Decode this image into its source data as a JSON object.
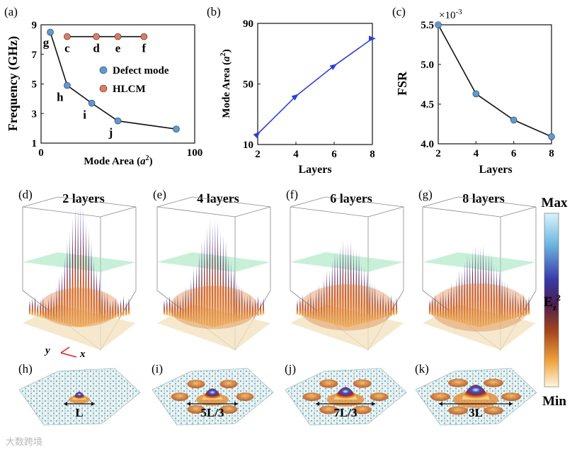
{
  "chart_data": [
    {
      "panel": "(a)",
      "type": "scatter",
      "xlabel_prefix": "Mode Area (",
      "xlabel_var": "a",
      "xlabel_exp": "2",
      "xlabel_suffix": ")",
      "ylabel": "Frequency (GHz)",
      "xlim": [
        0,
        100
      ],
      "ylim": [
        1,
        9
      ],
      "xticks": [
        "0",
        "100"
      ],
      "yticks": [
        "1",
        "3",
        "5",
        "7",
        "9"
      ],
      "series": [
        {
          "name": "Defect mode",
          "color": "#5b9bd5",
          "x": [
            6,
            17,
            33,
            50,
            88
          ],
          "y": [
            8.5,
            4.9,
            3.7,
            2.5,
            1.95
          ],
          "labels": [
            "g",
            "h",
            "i",
            "j",
            ""
          ]
        },
        {
          "name": "HLCM",
          "color": "#e07a5f",
          "x": [
            17,
            36,
            50,
            67
          ],
          "y": [
            8.2,
            8.2,
            8.2,
            8.2
          ],
          "labels": [
            "c",
            "d",
            "e",
            "f"
          ]
        }
      ]
    },
    {
      "panel": "(b)",
      "type": "line",
      "xlabel": "Layers",
      "ylabel_prefix": "Mode Area (",
      "ylabel_var": "a",
      "ylabel_exp": "2",
      "ylabel_suffix": ")",
      "xlim": [
        2,
        8
      ],
      "ylim": [
        10,
        90
      ],
      "xticks": [
        "2",
        "4",
        "6",
        "8"
      ],
      "yticks": [
        "10",
        "50",
        "90"
      ],
      "series": [
        {
          "name": "Mode Area",
          "color": "#2f3fd6",
          "x": [
            2,
            4,
            6,
            8
          ],
          "y": [
            17,
            42,
            62,
            80
          ]
        }
      ]
    },
    {
      "panel": "(c)",
      "type": "line",
      "xlabel": "Layers",
      "ylabel": "FSR",
      "scale_base": "×10",
      "scale_exp": "-3",
      "xlim": [
        2,
        8
      ],
      "ylim": [
        4.0,
        5.5
      ],
      "xticks": [
        "2",
        "4",
        "6",
        "8"
      ],
      "yticks": [
        "4.0",
        "4.5",
        "5.0",
        "5.5"
      ],
      "series": [
        {
          "name": "FSR",
          "color": "#5b9bd5",
          "x": [
            2,
            4,
            6,
            8
          ],
          "y": [
            5.5,
            4.63,
            4.3,
            4.09
          ]
        }
      ]
    }
  ],
  "field_panels": [
    {
      "tag": "(d)",
      "title": "2 layers",
      "amplitude": 1.0,
      "spread": 0.55
    },
    {
      "tag": "(e)",
      "title": "4 layers",
      "amplitude": 0.85,
      "spread": 0.75
    },
    {
      "tag": "(f)",
      "title": "6 layers",
      "amplitude": 0.65,
      "spread": 0.9
    },
    {
      "tag": "(g)",
      "title": "8 layers",
      "amplitude": 0.6,
      "spread": 1.0
    }
  ],
  "axis_labels": {
    "y": "y",
    "x": "x"
  },
  "mode_panels": [
    {
      "tag": "(h)",
      "label": "L",
      "peak": 0.25
    },
    {
      "tag": "(i)",
      "label": "5L/3",
      "peak": 0.6
    },
    {
      "tag": "(j)",
      "label": "7L/3",
      "peak": 0.75
    },
    {
      "tag": "(k)",
      "label": "3L",
      "peak": 1.0
    }
  ],
  "colorbar": {
    "max_label": "Max",
    "min_label": "Min",
    "quantity_base": "E",
    "quantity_sub": "z",
    "quantity_sup": "2"
  },
  "watermark": "大数跨境"
}
